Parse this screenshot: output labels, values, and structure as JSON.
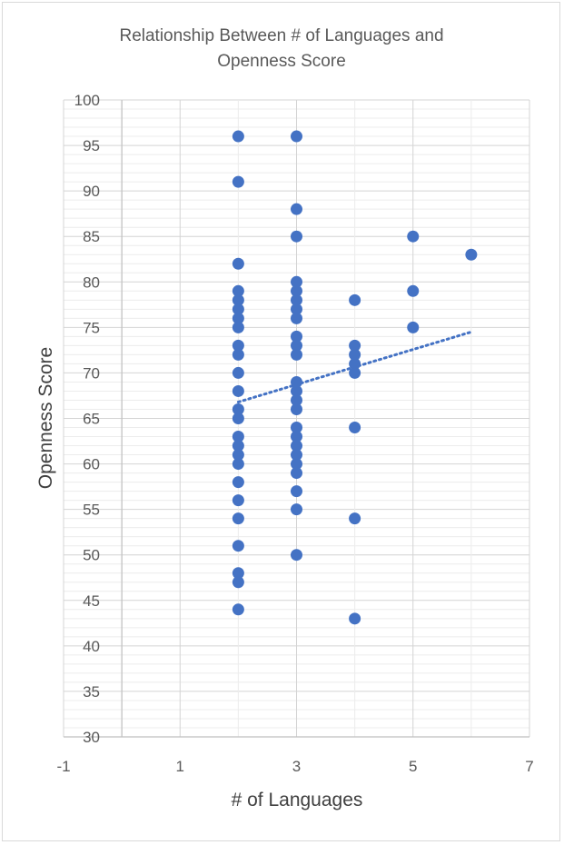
{
  "chart_data": {
    "type": "scatter",
    "title_lines": [
      "Relationship Between # of Languages and",
      "Openness Score"
    ],
    "xlabel": "# of Languages",
    "ylabel": "Openness Score",
    "xlim": [
      -1,
      7
    ],
    "ylim": [
      30,
      100
    ],
    "x_ticks": [
      -1,
      1,
      3,
      5,
      7
    ],
    "x_minor_gridlines": [
      0,
      2,
      4,
      6
    ],
    "y_ticks": [
      30,
      35,
      40,
      45,
      50,
      55,
      60,
      65,
      70,
      75,
      80,
      85,
      90,
      95,
      100
    ],
    "y_minor_step": 1,
    "grid": true,
    "legend": "none",
    "marker_color": "#4472C4",
    "trendline": {
      "type": "linear",
      "style": "dotted",
      "color": "#4472C4",
      "x_range": [
        2,
        6
      ],
      "y_range": [
        66.8,
        74.5
      ]
    },
    "series": [
      {
        "points": [
          [
            2,
            96
          ],
          [
            2,
            91
          ],
          [
            2,
            82
          ],
          [
            2,
            79
          ],
          [
            2,
            78
          ],
          [
            2,
            77
          ],
          [
            2,
            76
          ],
          [
            2,
            75
          ],
          [
            2,
            73
          ],
          [
            2,
            72
          ],
          [
            2,
            70
          ],
          [
            2,
            68
          ],
          [
            2,
            66
          ],
          [
            2,
            65
          ],
          [
            2,
            63
          ],
          [
            2,
            62
          ],
          [
            2,
            61
          ],
          [
            2,
            60
          ],
          [
            2,
            58
          ],
          [
            2,
            56
          ],
          [
            2,
            54
          ],
          [
            2,
            51
          ],
          [
            2,
            48
          ],
          [
            2,
            47
          ],
          [
            2,
            44
          ],
          [
            3,
            96
          ],
          [
            3,
            88
          ],
          [
            3,
            85
          ],
          [
            3,
            80
          ],
          [
            3,
            79
          ],
          [
            3,
            78
          ],
          [
            3,
            77
          ],
          [
            3,
            76
          ],
          [
            3,
            74
          ],
          [
            3,
            73
          ],
          [
            3,
            72
          ],
          [
            3,
            69
          ],
          [
            3,
            68
          ],
          [
            3,
            67
          ],
          [
            3,
            66
          ],
          [
            3,
            64
          ],
          [
            3,
            63
          ],
          [
            3,
            62
          ],
          [
            3,
            61
          ],
          [
            3,
            60
          ],
          [
            3,
            59
          ],
          [
            3,
            57
          ],
          [
            3,
            55
          ],
          [
            3,
            50
          ],
          [
            4,
            78
          ],
          [
            4,
            73
          ],
          [
            4,
            72
          ],
          [
            4,
            71
          ],
          [
            4,
            70
          ],
          [
            4,
            64
          ],
          [
            4,
            54
          ],
          [
            4,
            43
          ],
          [
            5,
            85
          ],
          [
            5,
            79
          ],
          [
            5,
            75
          ],
          [
            6,
            83
          ]
        ]
      }
    ]
  }
}
